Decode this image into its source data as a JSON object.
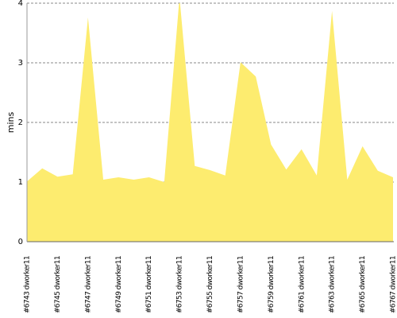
{
  "chart_data": {
    "type": "area",
    "y_label": "mins",
    "color": "#fdec6f",
    "categories": [
      "#6743 dworker11",
      null,
      "#6745 dworker11",
      null,
      "#6747 dworker11",
      null,
      "#6749 dworker11",
      null,
      "#6751 dworker11",
      null,
      "#6753 dworker11",
      null,
      "#6755 dworker11",
      null,
      "#6757 dworker11",
      null,
      "#6759 dworker11",
      null,
      "#6761 dworker11",
      null,
      "#6763 dworker11",
      null,
      "#6765 dworker11",
      null,
      "#6767 dworker11"
    ],
    "values": [
      1.01,
      1.23,
      1.09,
      1.13,
      3.76,
      1.04,
      1.08,
      1.04,
      1.08,
      1.0,
      4.1,
      1.27,
      1.2,
      1.11,
      3.01,
      2.77,
      1.63,
      1.21,
      1.55,
      1.11,
      3.87,
      1.04,
      1.6,
      1.19,
      1.08
    ],
    "ylim": [
      0,
      4
    ],
    "yticks": [
      0,
      1,
      2,
      3,
      4
    ],
    "grid": true
  }
}
